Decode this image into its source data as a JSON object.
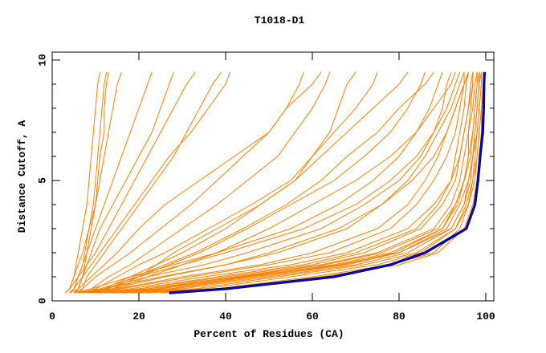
{
  "chart_data": {
    "type": "line",
    "title": "T1018-D1",
    "xlabel": "Percent of Residues (CA)",
    "ylabel": "Distance Cutoff, A",
    "xlim": [
      0,
      101.85
    ],
    "ylim": [
      0,
      10.33
    ],
    "x_ticks": [
      0,
      20,
      40,
      60,
      80,
      100
    ],
    "y_ticks": [
      0,
      5,
      10
    ],
    "grid": false,
    "colors": {
      "models": "#ff8000",
      "highlight": "#0000ff"
    },
    "y_levels": [
      0.33,
      0.5,
      1,
      1.5,
      2,
      3,
      4,
      5,
      6,
      7,
      8,
      9,
      9.5
    ],
    "series_x": [
      [
        3,
        4,
        5,
        5.5,
        6,
        7,
        8,
        8.5,
        9,
        9.5,
        10,
        10.5,
        11
      ],
      [
        4,
        5,
        6,
        7,
        7.5,
        8.5,
        9.5,
        10,
        10.5,
        11,
        11.5,
        12,
        12.5
      ],
      [
        5,
        6,
        7,
        7.5,
        8,
        9,
        10,
        10.5,
        11,
        12,
        12,
        12.5,
        13
      ],
      [
        3,
        4,
        5,
        6,
        7,
        8.5,
        10,
        11,
        12,
        13,
        14,
        15,
        16
      ],
      [
        4,
        5,
        6,
        7,
        8,
        10,
        12,
        14,
        16,
        18,
        20,
        22,
        23
      ],
      [
        5,
        6,
        7,
        8,
        9,
        11,
        14,
        17,
        20,
        23,
        25,
        27,
        28
      ],
      [
        3,
        4,
        6,
        8,
        10,
        13,
        16,
        19,
        22,
        25,
        28,
        31,
        33
      ],
      [
        6,
        7,
        8,
        10,
        12,
        16,
        20,
        24,
        28,
        31,
        34,
        37,
        39
      ],
      [
        4,
        5,
        7,
        9,
        11,
        15,
        19,
        23,
        27,
        32,
        36,
        40,
        41
      ],
      [
        5,
        7,
        10,
        14,
        18,
        25,
        32,
        38,
        44,
        50,
        54,
        57,
        58
      ],
      [
        6,
        9,
        13,
        18,
        22,
        30,
        38,
        45,
        52,
        56,
        60,
        63,
        64
      ],
      [
        4,
        6,
        9,
        12,
        15,
        20,
        26,
        34,
        42,
        50,
        54,
        60,
        62
      ],
      [
        8,
        12,
        18,
        24,
        30,
        40,
        48,
        56,
        60,
        65,
        70,
        74,
        75
      ],
      [
        7,
        10,
        15,
        20,
        26,
        36,
        46,
        55,
        60,
        64,
        66,
        68,
        70
      ],
      [
        10,
        14,
        20,
        27,
        34,
        45,
        55,
        65,
        72,
        78,
        82,
        85,
        86
      ],
      [
        9,
        13,
        19,
        26,
        33,
        44,
        54,
        62,
        68,
        75,
        80,
        86,
        88
      ],
      [
        10,
        15,
        22,
        30,
        38,
        50,
        60,
        70,
        78,
        84,
        88,
        92,
        93
      ],
      [
        12,
        20,
        40,
        60,
        72,
        85,
        90,
        93,
        94,
        95,
        96,
        97,
        97
      ],
      [
        15,
        25,
        45,
        65,
        78,
        90,
        93,
        95,
        96,
        97,
        97.5,
        98,
        98
      ],
      [
        10,
        18,
        35,
        55,
        68,
        82,
        88,
        92,
        94,
        95,
        96,
        96.5,
        97
      ],
      [
        18,
        30,
        50,
        70,
        82,
        92,
        95,
        96,
        97,
        98,
        98.5,
        99,
        99
      ],
      [
        14,
        22,
        42,
        62,
        75,
        88,
        92,
        94,
        95,
        96,
        97,
        97.5,
        98
      ],
      [
        20,
        35,
        55,
        75,
        85,
        93,
        96,
        97,
        98,
        98.5,
        99,
        99.5,
        99.5
      ],
      [
        8,
        15,
        30,
        48,
        60,
        75,
        82,
        86,
        89,
        91,
        93,
        95,
        96
      ],
      [
        6,
        12,
        25,
        40,
        52,
        68,
        76,
        82,
        86,
        89,
        92,
        94,
        95
      ],
      [
        16,
        28,
        48,
        68,
        80,
        91,
        94,
        96,
        97,
        97.5,
        98,
        98.5,
        99
      ],
      [
        22,
        38,
        60,
        78,
        88,
        94,
        96,
        97.5,
        98,
        98.5,
        99,
        99.5,
        100
      ],
      [
        12,
        22,
        44,
        66,
        80,
        92,
        95,
        96.5,
        97,
        97.5,
        98,
        98.5,
        98.5
      ],
      [
        25,
        40,
        62,
        80,
        89,
        95,
        97,
        98,
        98.5,
        99,
        99,
        99.5,
        99.5
      ],
      [
        11,
        20,
        38,
        58,
        70,
        84,
        89,
        92,
        93,
        94,
        95,
        95.5,
        96
      ],
      [
        9,
        16,
        32,
        50,
        64,
        78,
        84,
        88,
        91,
        93,
        94,
        95,
        95
      ],
      [
        17,
        27,
        46,
        67,
        79,
        90,
        93.5,
        95,
        96.5,
        97,
        97.5,
        98,
        98.5
      ],
      [
        13,
        24,
        43,
        63,
        76,
        89,
        93,
        95,
        96,
        96,
        96.5,
        97,
        97
      ],
      [
        19,
        33,
        52,
        72,
        84,
        93,
        95.5,
        97,
        97.5,
        98,
        98.5,
        99,
        99
      ],
      [
        7,
        12,
        22,
        35,
        45,
        62,
        72,
        80,
        85,
        88,
        90,
        91,
        92
      ],
      [
        5,
        9,
        18,
        28,
        38,
        55,
        66,
        74,
        80,
        84,
        87,
        89,
        90
      ],
      [
        6,
        11,
        20,
        30,
        40,
        58,
        70,
        78,
        84,
        88,
        91,
        93,
        94
      ],
      [
        8,
        14,
        26,
        40,
        50,
        66,
        76,
        83,
        88,
        91,
        93,
        95,
        96
      ],
      [
        10,
        14,
        20,
        24,
        28,
        38,
        48,
        56,
        62,
        68,
        74,
        80,
        82
      ]
    ],
    "highlight_x": [
      27,
      40,
      65,
      78,
      86,
      95.5,
      97.5,
      98.2,
      98.7,
      99.3,
      99.5,
      99.6,
      99.7
    ]
  }
}
